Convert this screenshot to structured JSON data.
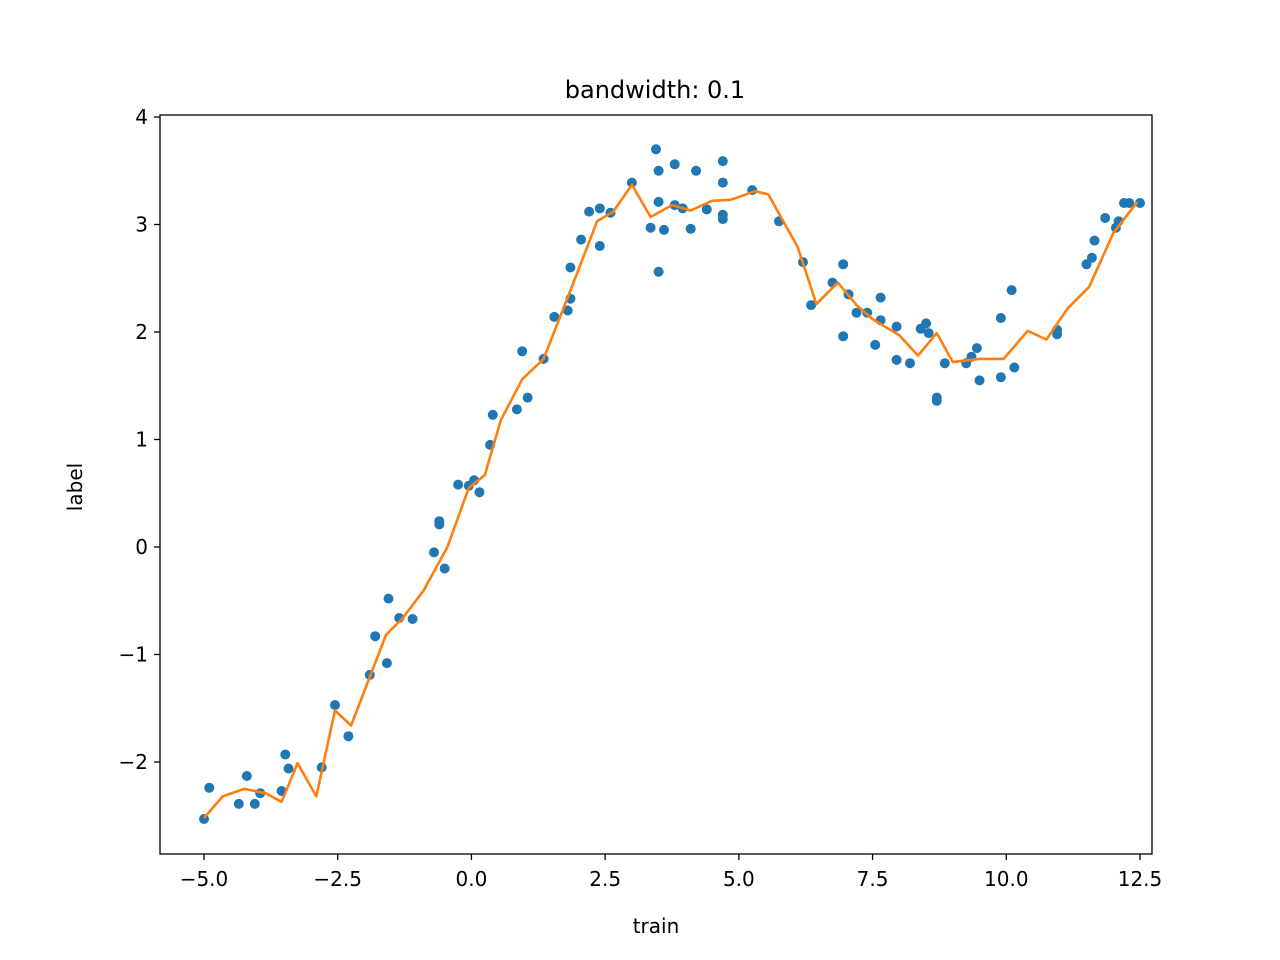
{
  "chart_data": {
    "type": "scatter",
    "title": "bandwidth: 0.1",
    "xlabel": "train",
    "ylabel": "label",
    "xlim": [
      -5.8,
      12.7
    ],
    "ylim": [
      -2.85,
      4.0
    ],
    "grid": false,
    "legend": "none",
    "xticks": [
      -5.0,
      -2.5,
      0.0,
      2.5,
      5.0,
      7.5,
      10.0,
      12.5
    ],
    "xtick_labels": [
      "−5.0",
      "−2.5",
      "0.0",
      "2.5",
      "5.0",
      "7.5",
      "10.0",
      "12.5"
    ],
    "yticks": [
      -2,
      -1,
      0,
      1,
      2,
      3,
      4
    ],
    "ytick_labels": [
      "−2",
      "−1",
      "0",
      "1",
      "2",
      "3",
      "4"
    ],
    "series": [
      {
        "kind": "scatter",
        "color": "#1f77b4",
        "points": [
          [
            -5.0,
            -2.53
          ],
          [
            -4.9,
            -2.24
          ],
          [
            -4.35,
            -2.39
          ],
          [
            -4.2,
            -2.13
          ],
          [
            -4.05,
            -2.39
          ],
          [
            -3.95,
            -2.29
          ],
          [
            -3.55,
            -2.27
          ],
          [
            -3.48,
            -1.93
          ],
          [
            -3.42,
            -2.06
          ],
          [
            -2.8,
            -2.05
          ],
          [
            -2.55,
            -1.47
          ],
          [
            -2.3,
            -1.76
          ],
          [
            -1.9,
            -1.19
          ],
          [
            -1.8,
            -0.83
          ],
          [
            -1.58,
            -1.08
          ],
          [
            -1.55,
            -0.48
          ],
          [
            -1.35,
            -0.66
          ],
          [
            -1.1,
            -0.67
          ],
          [
            -0.7,
            -0.05
          ],
          [
            -0.6,
            0.24
          ],
          [
            -0.6,
            0.21
          ],
          [
            -0.5,
            -0.2
          ],
          [
            -0.25,
            0.58
          ],
          [
            -0.05,
            0.57
          ],
          [
            0.05,
            0.62
          ],
          [
            0.15,
            0.51
          ],
          [
            0.35,
            0.95
          ],
          [
            0.4,
            1.23
          ],
          [
            0.85,
            1.28
          ],
          [
            0.95,
            1.82
          ],
          [
            1.05,
            1.39
          ],
          [
            1.35,
            1.75
          ],
          [
            1.55,
            2.14
          ],
          [
            1.8,
            2.2
          ],
          [
            1.85,
            2.31
          ],
          [
            1.85,
            2.6
          ],
          [
            2.05,
            2.86
          ],
          [
            2.2,
            3.12
          ],
          [
            2.4,
            3.15
          ],
          [
            2.4,
            2.8
          ],
          [
            2.6,
            3.11
          ],
          [
            3.0,
            3.39
          ],
          [
            3.35,
            2.97
          ],
          [
            3.45,
            3.7
          ],
          [
            3.5,
            3.5
          ],
          [
            3.5,
            3.21
          ],
          [
            3.5,
            2.56
          ],
          [
            3.6,
            2.95
          ],
          [
            3.8,
            3.56
          ],
          [
            3.8,
            3.18
          ],
          [
            3.95,
            3.15
          ],
          [
            4.1,
            2.96
          ],
          [
            4.2,
            3.5
          ],
          [
            4.4,
            3.14
          ],
          [
            4.7,
            3.59
          ],
          [
            4.7,
            3.39
          ],
          [
            4.7,
            3.09
          ],
          [
            4.7,
            3.05
          ],
          [
            5.25,
            3.32
          ],
          [
            5.75,
            3.03
          ],
          [
            6.2,
            2.65
          ],
          [
            6.35,
            2.25
          ],
          [
            6.75,
            2.46
          ],
          [
            6.95,
            2.63
          ],
          [
            6.95,
            1.96
          ],
          [
            7.05,
            2.35
          ],
          [
            7.2,
            2.18
          ],
          [
            7.4,
            2.18
          ],
          [
            7.55,
            1.88
          ],
          [
            7.65,
            2.32
          ],
          [
            7.65,
            2.11
          ],
          [
            7.95,
            2.05
          ],
          [
            7.95,
            1.74
          ],
          [
            8.2,
            1.71
          ],
          [
            8.4,
            2.03
          ],
          [
            8.5,
            2.08
          ],
          [
            8.55,
            1.99
          ],
          [
            8.7,
            1.39
          ],
          [
            8.7,
            1.36
          ],
          [
            8.85,
            1.71
          ],
          [
            9.25,
            1.71
          ],
          [
            9.35,
            1.77
          ],
          [
            9.45,
            1.85
          ],
          [
            9.5,
            1.55
          ],
          [
            9.9,
            1.58
          ],
          [
            9.9,
            2.13
          ],
          [
            10.1,
            2.39
          ],
          [
            10.15,
            1.67
          ],
          [
            10.95,
            1.98
          ],
          [
            10.95,
            2.02
          ],
          [
            11.5,
            2.63
          ],
          [
            11.6,
            2.69
          ],
          [
            11.65,
            2.85
          ],
          [
            11.85,
            3.06
          ],
          [
            12.05,
            2.97
          ],
          [
            12.1,
            3.03
          ],
          [
            12.2,
            3.2
          ],
          [
            12.3,
            3.2
          ],
          [
            12.5,
            3.2
          ]
        ]
      },
      {
        "kind": "line",
        "color": "#ff7f0e",
        "points": [
          [
            -5.0,
            -2.52
          ],
          [
            -4.65,
            -2.32
          ],
          [
            -4.25,
            -2.25
          ],
          [
            -3.85,
            -2.29
          ],
          [
            -3.55,
            -2.37
          ],
          [
            -3.25,
            -2.01
          ],
          [
            -2.9,
            -2.32
          ],
          [
            -2.55,
            -1.52
          ],
          [
            -2.25,
            -1.66
          ],
          [
            -1.6,
            -0.82
          ],
          [
            -1.3,
            -0.67
          ],
          [
            -0.9,
            -0.41
          ],
          [
            -0.45,
            0.0
          ],
          [
            -0.05,
            0.55
          ],
          [
            0.25,
            0.67
          ],
          [
            0.55,
            1.18
          ],
          [
            0.95,
            1.56
          ],
          [
            1.35,
            1.75
          ],
          [
            1.9,
            2.45
          ],
          [
            2.35,
            3.03
          ],
          [
            2.65,
            3.12
          ],
          [
            3.0,
            3.37
          ],
          [
            3.35,
            3.07
          ],
          [
            3.75,
            3.18
          ],
          [
            4.1,
            3.13
          ],
          [
            4.5,
            3.22
          ],
          [
            4.85,
            3.23
          ],
          [
            5.3,
            3.31
          ],
          [
            5.55,
            3.28
          ],
          [
            6.1,
            2.79
          ],
          [
            6.45,
            2.26
          ],
          [
            6.85,
            2.46
          ],
          [
            7.2,
            2.25
          ],
          [
            7.5,
            2.12
          ],
          [
            8.0,
            1.97
          ],
          [
            8.35,
            1.78
          ],
          [
            8.7,
            1.99
          ],
          [
            9.0,
            1.72
          ],
          [
            9.5,
            1.75
          ],
          [
            9.95,
            1.75
          ],
          [
            10.4,
            2.01
          ],
          [
            10.75,
            1.93
          ],
          [
            11.15,
            2.22
          ],
          [
            11.55,
            2.42
          ],
          [
            12.0,
            2.92
          ],
          [
            12.45,
            3.21
          ]
        ]
      }
    ]
  }
}
